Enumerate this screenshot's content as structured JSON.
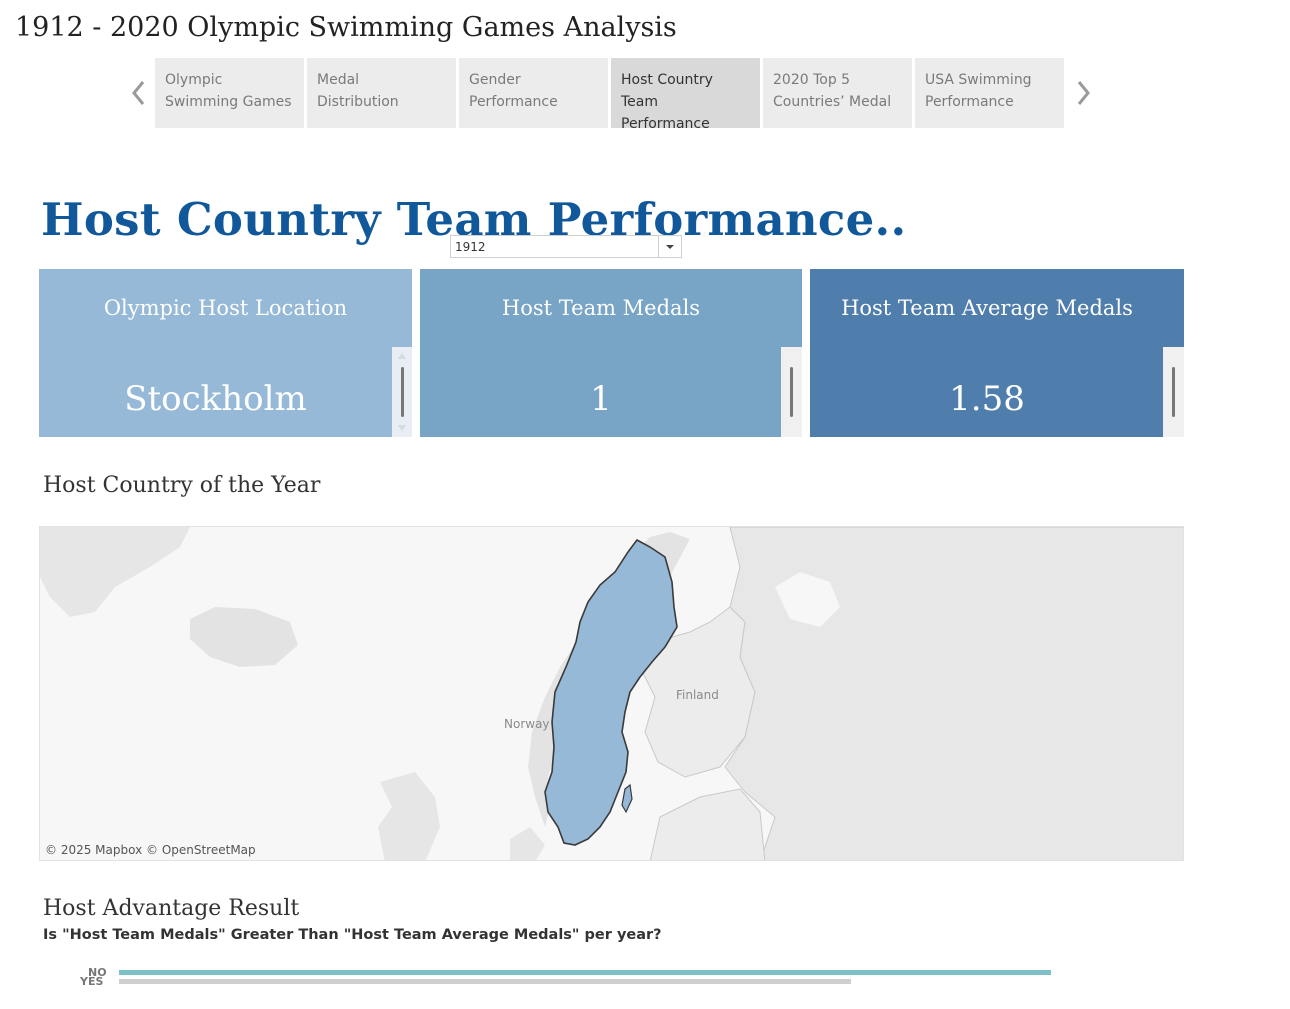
{
  "story": {
    "title": "1912 - 2020 Olympic Swimming Games Analysis"
  },
  "nav": {
    "tabs": [
      {
        "line1": "Olympic",
        "line2": "Swimming Games",
        "active": false
      },
      {
        "line1": "Medal",
        "line2": "Distribution",
        "active": false
      },
      {
        "line1": "Gender",
        "line2": "Performance",
        "active": false
      },
      {
        "line1": "Host Country",
        "line2": "Team Performance",
        "active": true
      },
      {
        "line1": "2020 Top 5",
        "line2": "Countries’ Medal",
        "active": false
      },
      {
        "line1": "USA Swimming",
        "line2": "Performance",
        "active": false
      }
    ]
  },
  "page": {
    "heading": "Host Country Team Performance.."
  },
  "year_filter": {
    "selected": "1912"
  },
  "kpis": {
    "location": {
      "title": "Olympic Host Location",
      "value": "Stockholm",
      "color": "#95b9d6"
    },
    "medals": {
      "title": "Host Team Medals",
      "value": "1",
      "color": "#78a4c6"
    },
    "average": {
      "title": "Host Team Average Medals",
      "value": "1.58",
      "color": "#4f7eac"
    }
  },
  "map": {
    "heading": "Host Country of the Year",
    "highlight_color": "#96b9d8",
    "labels": {
      "norway": "Norway",
      "finland": "Finland"
    },
    "credit": "© 2025 Mapbox © OpenStreetMap"
  },
  "advantage": {
    "heading": "Host Advantage Result",
    "subtitle": "Is \"Host Team Medals\" Greater Than \"Host Team Average Medals\" per year?",
    "bars": [
      {
        "label": "NO",
        "fraction": 1.0,
        "color": "#7cc0c8"
      },
      {
        "label": "YES",
        "fraction": 0.785,
        "color": "#cfcfcf"
      }
    ]
  }
}
